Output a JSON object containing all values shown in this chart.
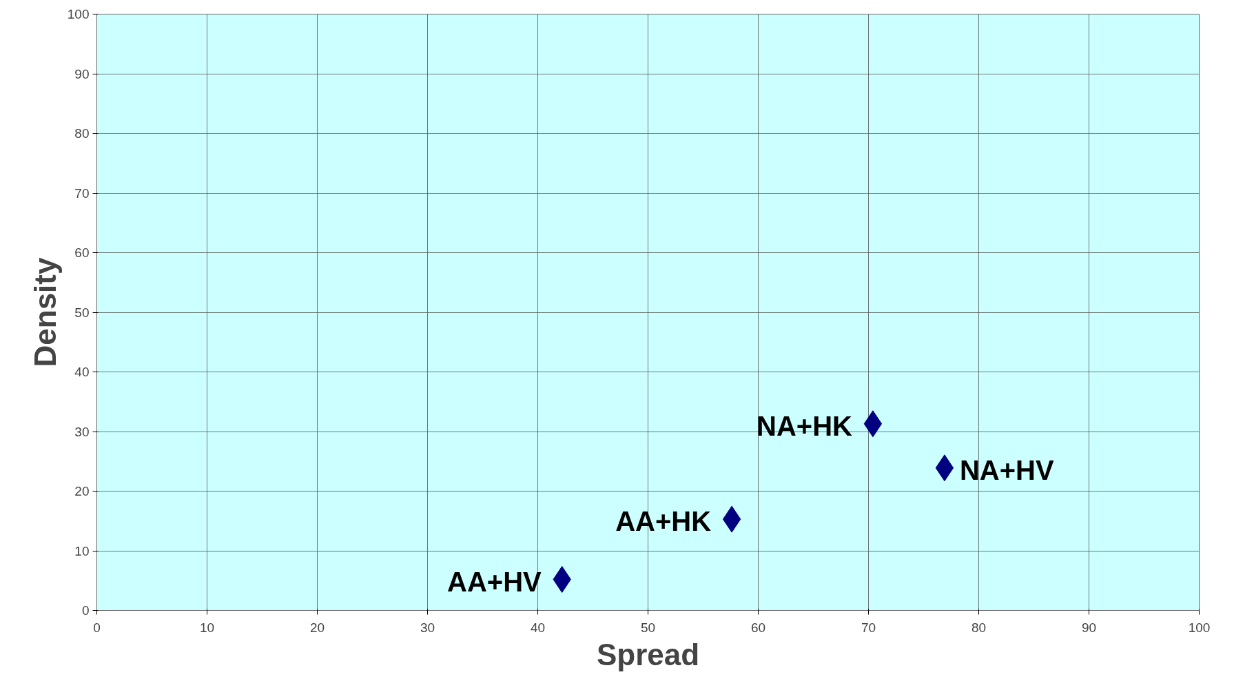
{
  "chart_data": {
    "type": "scatter",
    "xlabel": "Spread",
    "ylabel": "Density",
    "x": [
      42.2,
      57.6,
      70.4,
      76.9
    ],
    "series": [
      {
        "color": "#000080",
        "values": [
          5.2,
          15.3,
          31.3,
          23.9
        ]
      }
    ],
    "marker": "diamond",
    "grid": true,
    "xlim": [
      0,
      100
    ],
    "xticks": [
      0,
      10,
      20,
      30,
      40,
      50,
      60,
      70,
      80,
      90,
      100
    ],
    "ylim": [
      0,
      100
    ],
    "yticks": [
      0,
      10,
      20,
      30,
      40,
      50,
      60,
      70,
      80,
      90,
      100
    ],
    "annotations": [
      {
        "text": "AA+HV",
        "x": 42.2,
        "y": 5.2
      },
      {
        "text": "AA+HK",
        "x": 57.6,
        "y": 15.3
      },
      {
        "text": "NA+HK",
        "x": 70.4,
        "y": 31.3
      },
      {
        "text": "NA+HV",
        "x": 76.9,
        "y": 23.9
      }
    ]
  }
}
